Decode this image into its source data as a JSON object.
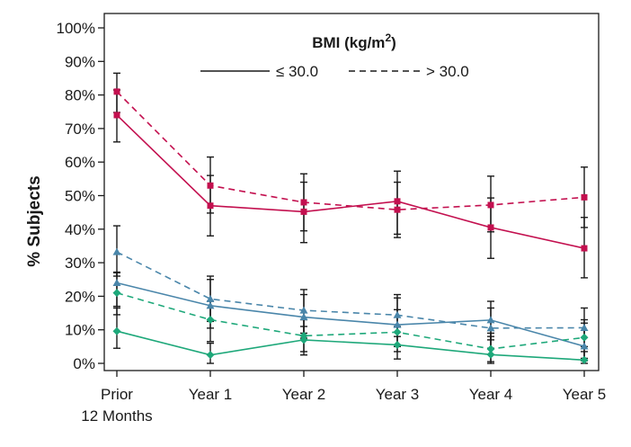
{
  "chart_data": {
    "type": "line",
    "title": "",
    "xlabel": "",
    "ylabel": "% Subjects",
    "categories": [
      "Prior\n12 Months",
      "Year 1",
      "Year 2",
      "Year 3",
      "Year 4",
      "Year 5"
    ],
    "ylim": [
      0,
      100
    ],
    "yticks": [
      0,
      10,
      20,
      30,
      40,
      50,
      60,
      70,
      80,
      90,
      100
    ],
    "ytick_labels": [
      "0%",
      "10%",
      "20%",
      "30%",
      "40%",
      "50%",
      "60%",
      "70%",
      "80%",
      "90%",
      "100%"
    ],
    "grid": false,
    "legend": {
      "title": "BMI (kg/m",
      "title_sup": "2",
      "title_close": ")",
      "placement": "top-center",
      "entries": [
        {
          "label": "≤ 30.0",
          "style": "solid"
        },
        {
          "label": "> 30.0",
          "style": "dashed"
        }
      ]
    },
    "series": [
      {
        "color": "#c3104f",
        "marker": "square",
        "style": "solid",
        "values": [
          74,
          47,
          45.2,
          48.3,
          40.5,
          34.3
        ],
        "error_low": [
          66,
          38,
          36,
          38.5,
          31.3,
          25.5
        ],
        "error_high": [
          81.5,
          56,
          54,
          57.3,
          49.3,
          43.5
        ]
      },
      {
        "color": "#c3104f",
        "marker": "square",
        "style": "dashed",
        "values": [
          81,
          53,
          48,
          45.8,
          47.2,
          49.5
        ],
        "error_low": [
          74.8,
          44.8,
          39.5,
          37.5,
          39.2,
          40.5
        ],
        "error_high": [
          86.5,
          61.5,
          56.5,
          54,
          55.8,
          58.5
        ]
      },
      {
        "color": "#4a86aa",
        "marker": "triangle",
        "style": "solid",
        "values": [
          24,
          17.2,
          13.8,
          11.5,
          12.9,
          5.1
        ],
        "error_low": [
          17,
          10.5,
          7.5,
          5,
          7,
          0.8
        ],
        "error_high": [
          27.2,
          25,
          20.5,
          19.5,
          18.5,
          13
        ]
      },
      {
        "color": "#4a86aa",
        "marker": "triangle",
        "style": "dashed",
        "values": [
          33.2,
          19.2,
          15.8,
          14.4,
          10.5,
          10.6
        ],
        "error_low": [
          26,
          12.5,
          9,
          8,
          4.5,
          5
        ],
        "error_high": [
          41,
          26,
          22,
          20.5,
          16.5,
          16.5
        ]
      },
      {
        "color": "#1ea87a",
        "marker": "diamond",
        "style": "solid",
        "values": [
          9.6,
          2.5,
          7,
          5.5,
          2.6,
          1
        ],
        "error_low": [
          4.5,
          0,
          3.5,
          1.3,
          0,
          0
        ],
        "error_high": [
          16.5,
          6,
          11,
          11,
          8,
          3.5
        ]
      },
      {
        "color": "#1ea87a",
        "marker": "diamond",
        "style": "dashed",
        "values": [
          21,
          13,
          8.2,
          9.3,
          4.3,
          7.7
        ],
        "error_low": [
          14.5,
          6.5,
          2.5,
          3.5,
          0.5,
          1.5
        ],
        "error_high": [
          27,
          18.5,
          13,
          16,
          9,
          12
        ]
      }
    ]
  }
}
